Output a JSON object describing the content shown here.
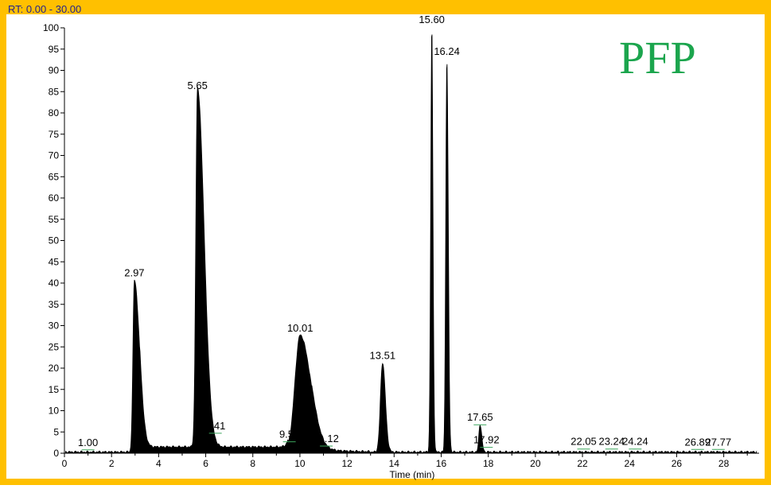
{
  "colors": {
    "border": "#FFC000",
    "trace": "#000000",
    "baseline_label": "#3BA55C",
    "range_text": "#1F1F8F",
    "tag": "#1BA54D"
  },
  "header": {
    "range_label": "RT: 0.00 - 30.00"
  },
  "tag_label": "PFP",
  "chart_data": {
    "type": "line",
    "title": "",
    "xlabel": "Time (min)",
    "ylabel": "",
    "xlim": [
      0,
      29.5
    ],
    "ylim": [
      0,
      100
    ],
    "x_ticks": [
      0,
      2,
      4,
      6,
      8,
      10,
      12,
      14,
      16,
      18,
      20,
      22,
      24,
      26,
      28
    ],
    "y_ticks": [
      0,
      5,
      10,
      15,
      20,
      25,
      30,
      35,
      40,
      45,
      50,
      55,
      60,
      65,
      70,
      75,
      80,
      85,
      90,
      95,
      100
    ],
    "x_tick_labels": [
      "0",
      "2",
      "4",
      "6",
      "8",
      "10",
      "12",
      "14",
      "16",
      "18",
      "20",
      "22",
      "24",
      "26",
      "28"
    ],
    "y_tick_labels": [
      "0",
      "5",
      "10",
      "15",
      "20",
      "25",
      "30",
      "35",
      "40",
      "45",
      "50",
      "55",
      "60",
      "65",
      "70",
      "75",
      "80",
      "85",
      "90",
      "95",
      "100"
    ],
    "peaks": [
      {
        "label": "1.00",
        "rt": 1.0,
        "height": 0.6
      },
      {
        "label": "2.97",
        "rt": 2.97,
        "height": 40.5
      },
      {
        "label": "5.65",
        "rt": 5.65,
        "height": 84.5
      },
      {
        "label": "6.41",
        "rt": 6.41,
        "height": 4.5
      },
      {
        "label": "9.55",
        "rt": 9.55,
        "height": 2.5
      },
      {
        "label": "10.01",
        "rt": 10.01,
        "height": 27.5
      },
      {
        "label": "11.12",
        "rt": 11.12,
        "height": 1.5
      },
      {
        "label": "13.51",
        "rt": 13.51,
        "height": 21.0
      },
      {
        "label": "15.60",
        "rt": 15.6,
        "height": 100
      },
      {
        "label": "16.24",
        "rt": 16.24,
        "height": 92.5
      },
      {
        "label": "17.65",
        "rt": 17.65,
        "height": 6.5
      },
      {
        "label": "17.92",
        "rt": 17.92,
        "height": 1.2
      },
      {
        "label": "22.05",
        "rt": 22.05,
        "height": 0.8
      },
      {
        "label": "23.24",
        "rt": 23.24,
        "height": 0.8
      },
      {
        "label": "24.24",
        "rt": 24.24,
        "height": 0.8
      },
      {
        "label": "26.89",
        "rt": 26.89,
        "height": 0.7
      },
      {
        "label": "27.77",
        "rt": 27.77,
        "height": 0.7
      }
    ]
  }
}
